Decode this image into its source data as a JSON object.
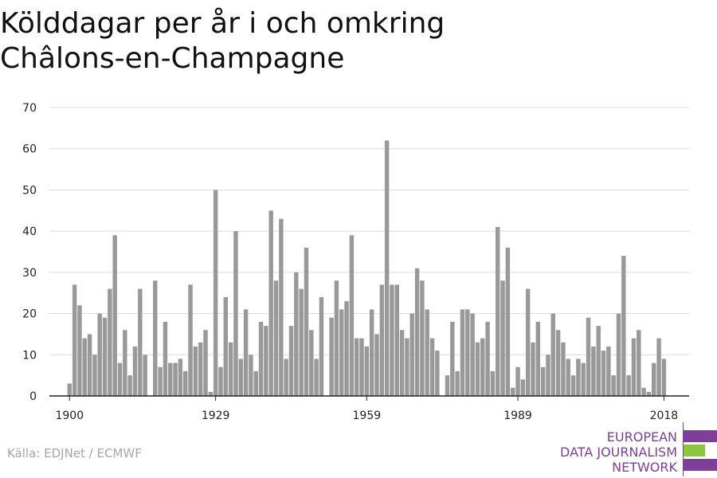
{
  "title_line1": "Kölddagar per år i och omkring",
  "title_line2": "Châlons-en-Champagne",
  "source": "Källa: EDJNet / ECMWF",
  "logo": {
    "line1": "EUROPEAN",
    "line2": "DATA JOURNALISM",
    "line3": "NETWORK",
    "colors": {
      "purple": "#7f3f98",
      "green": "#8cc63f"
    }
  },
  "chart_data": {
    "type": "bar",
    "bar_color": "#999999",
    "ylim": [
      0,
      70
    ],
    "xlim": [
      1896,
      2023
    ],
    "yticks": [
      0,
      10,
      20,
      30,
      40,
      50,
      60,
      70
    ],
    "xticks": [
      1900,
      1929,
      1959,
      1989,
      2018
    ],
    "grid": true,
    "years_start": 1900,
    "values": [
      3,
      27,
      22,
      14,
      15,
      10,
      20,
      19,
      26,
      39,
      8,
      16,
      5,
      12,
      26,
      10,
      0,
      28,
      7,
      18,
      8,
      8,
      9,
      6,
      27,
      12,
      13,
      16,
      1,
      50,
      7,
      24,
      13,
      40,
      9,
      21,
      10,
      6,
      18,
      17,
      45,
      28,
      43,
      9,
      17,
      30,
      26,
      36,
      16,
      9,
      24,
      0,
      19,
      28,
      21,
      23,
      39,
      14,
      14,
      12,
      21,
      15,
      27,
      62,
      27,
      27,
      16,
      14,
      20,
      31,
      28,
      21,
      14,
      11,
      0,
      5,
      18,
      6,
      21,
      21,
      20,
      13,
      14,
      18,
      6,
      41,
      28,
      36,
      2,
      7,
      4,
      26,
      13,
      18,
      7,
      10,
      20,
      16,
      13,
      9,
      5,
      9,
      8,
      19,
      12,
      17,
      11,
      12,
      5,
      20,
      34,
      5,
      14,
      16,
      2,
      1,
      8,
      14,
      9
    ]
  }
}
